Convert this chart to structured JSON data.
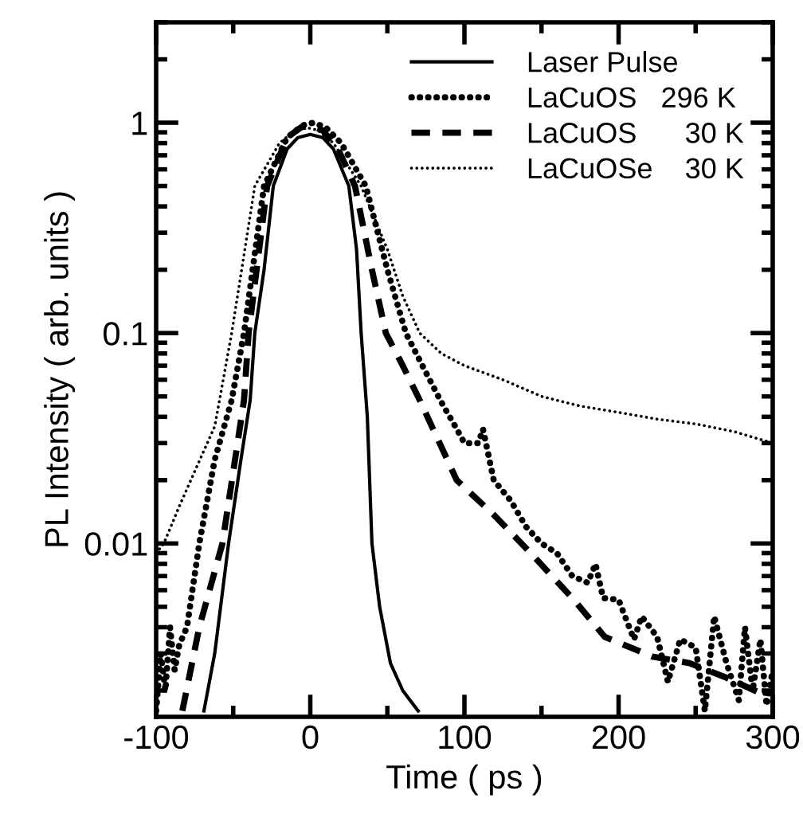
{
  "chart_data": {
    "type": "line",
    "xlabel": "Time ( ps )",
    "ylabel": "PL Intensity ( arb. units )",
    "log": "y",
    "xlim": [
      -100,
      300
    ],
    "xticks": [
      -100,
      0,
      100,
      200,
      300
    ],
    "ylim": [
      0.0015,
      3
    ],
    "yticks": [
      0.01,
      0.1,
      1
    ],
    "legend": "top right",
    "grid": false,
    "marker": "none",
    "series": [
      {
        "name": "Laser Pulse",
        "color": "#000000",
        "line_style": "solid",
        "x": [
          -69,
          -62,
          -53,
          -45,
          -39,
          -36,
          -30,
          -24,
          -15,
          -8,
          0,
          8,
          15,
          25,
          30,
          33,
          37,
          40,
          45,
          52,
          60,
          70
        ],
        "values": [
          0.0016,
          0.003,
          0.01,
          0.025,
          0.048,
          0.1,
          0.2,
          0.5,
          0.75,
          0.85,
          0.88,
          0.85,
          0.75,
          0.5,
          0.25,
          0.1,
          0.04,
          0.01,
          0.005,
          0.0027,
          0.002,
          0.0016
        ]
      },
      {
        "name": "LaCuOS   296 K",
        "color": "#000000",
        "line_style": "dotted",
        "x": [
          -100,
          -97,
          -94,
          -91,
          -88,
          -85,
          -80,
          -72,
          -62,
          -51,
          -43,
          -30,
          -15,
          -5,
          2,
          10,
          20,
          36,
          50,
          62,
          75,
          85,
          95,
          100,
          109,
          112,
          119,
          130,
          140,
          150,
          160,
          170,
          180,
          185,
          190,
          200,
          210,
          215,
          225,
          232,
          240,
          250,
          256,
          262,
          270,
          278,
          282,
          287,
          292,
          296,
          300
        ],
        "values": [
          0.0016,
          0.003,
          0.002,
          0.004,
          0.0025,
          0.0033,
          0.004,
          0.01,
          0.025,
          0.048,
          0.1,
          0.5,
          0.85,
          0.97,
          1.0,
          0.95,
          0.8,
          0.5,
          0.2,
          0.1,
          0.065,
          0.047,
          0.035,
          0.03,
          0.03,
          0.035,
          0.02,
          0.016,
          0.012,
          0.01,
          0.009,
          0.007,
          0.0065,
          0.008,
          0.0055,
          0.0054,
          0.0035,
          0.0045,
          0.0036,
          0.0022,
          0.0035,
          0.0032,
          0.0016,
          0.0045,
          0.0027,
          0.0018,
          0.004,
          0.002,
          0.0035,
          0.0017,
          0.0025
        ]
      },
      {
        "name": "LaCuOS      30 K",
        "color": "#000000",
        "line_style": "dashed",
        "x": [
          -83,
          -72,
          -57,
          -43,
          -40,
          -28,
          -15,
          -6,
          0,
          8,
          18,
          29,
          40,
          49,
          60,
          71,
          95,
          119,
          143,
          171,
          191,
          222,
          246,
          270,
          295
        ],
        "values": [
          0.0016,
          0.004,
          0.01,
          0.048,
          0.1,
          0.5,
          0.85,
          0.95,
          0.97,
          0.92,
          0.75,
          0.5,
          0.2,
          0.1,
          0.07,
          0.048,
          0.02,
          0.0137,
          0.009,
          0.0054,
          0.0036,
          0.0029,
          0.0027,
          0.0023,
          0.0019
        ]
      },
      {
        "name": "LaCuOSe    30 K",
        "color": "#000000",
        "line_style": "dotted",
        "x": [
          -100,
          -95,
          -85,
          -75,
          -62,
          -51,
          -36,
          -20,
          -10,
          -3,
          5,
          15,
          33,
          50,
          60,
          71,
          85,
          100,
          125,
          150,
          175,
          200,
          225,
          250,
          275,
          300
        ],
        "values": [
          0.009,
          0.01,
          0.015,
          0.022,
          0.036,
          0.1,
          0.5,
          0.8,
          0.92,
          0.95,
          0.92,
          0.8,
          0.5,
          0.25,
          0.15,
          0.1,
          0.08,
          0.07,
          0.06,
          0.05,
          0.045,
          0.042,
          0.039,
          0.037,
          0.034,
          0.03
        ]
      }
    ]
  }
}
